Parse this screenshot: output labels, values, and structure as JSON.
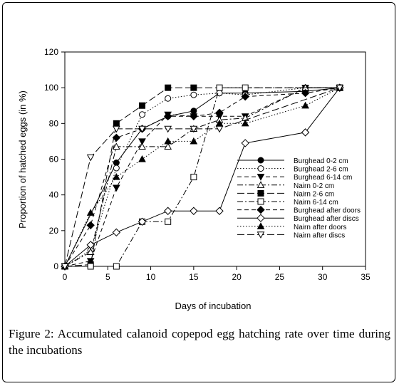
{
  "caption": {
    "label": "Figure 2:",
    "text": "Accumulated calanoid copepod egg hatching rate over time during the incubations"
  },
  "chart_data": {
    "type": "line",
    "xlabel": "Days of incubation",
    "ylabel": "Proportion of hatched eggs (in %)",
    "xlim": [
      0,
      35
    ],
    "ylim": [
      0,
      120
    ],
    "xticks": [
      0,
      5,
      10,
      15,
      20,
      25,
      30,
      35
    ],
    "yticks": [
      0,
      20,
      40,
      60,
      80,
      100,
      120
    ],
    "grid": false,
    "legend_position": "lower-right",
    "series": [
      {
        "name": "Burghead 0-2 cm",
        "marker": "circle-filled",
        "dash": "solid",
        "x": [
          0,
          6,
          9,
          12,
          15,
          18,
          21,
          28,
          32
        ],
        "y": [
          0,
          58,
          77,
          84,
          87,
          97,
          97,
          98,
          100
        ]
      },
      {
        "name": "Burghead 2-6 cm",
        "marker": "circle-open",
        "dash": "dotted",
        "x": [
          0,
          3,
          6,
          9,
          12,
          15,
          18,
          21,
          28,
          32
        ],
        "y": [
          0,
          9,
          55,
          85,
          94,
          96,
          97,
          96,
          100,
          100
        ]
      },
      {
        "name": "Burghead 6-14 cm",
        "marker": "triangle-down-filled",
        "dash": "dashed",
        "x": [
          0,
          3,
          6,
          9,
          12,
          15,
          18,
          21,
          28,
          32
        ],
        "y": [
          0,
          3,
          44,
          70,
          85,
          84,
          84,
          84,
          100,
          100
        ]
      },
      {
        "name": "Nairn 0-2 cm",
        "marker": "triangle-up-open",
        "dash": "dashdot",
        "x": [
          0,
          3,
          6,
          9,
          12,
          15,
          18,
          21,
          28,
          32
        ],
        "y": [
          0,
          8,
          67,
          67,
          67,
          77,
          82,
          83,
          100,
          100
        ]
      },
      {
        "name": "Nairn 2-6 cm",
        "marker": "square-filled",
        "dash": "longdash",
        "x": [
          0,
          3,
          6,
          9,
          12,
          15,
          32
        ],
        "y": [
          0,
          1,
          80,
          90,
          100,
          100,
          100
        ]
      },
      {
        "name": "Nairn 6-14 cm",
        "marker": "square-open",
        "dash": "dashdot",
        "x": [
          0,
          3,
          6,
          9,
          12,
          15,
          18,
          21,
          32
        ],
        "y": [
          0,
          0,
          0,
          25,
          25,
          50,
          100,
          100,
          100
        ]
      },
      {
        "name": "Burghead after doors",
        "marker": "diamond-filled",
        "dash": "dashed",
        "x": [
          0,
          3,
          6,
          9,
          12,
          15,
          18,
          21,
          28,
          32
        ],
        "y": [
          0,
          23,
          72,
          77,
          84,
          84,
          86,
          95,
          97,
          100
        ]
      },
      {
        "name": "Burghead after discs",
        "marker": "diamond-open",
        "dash": "solid",
        "x": [
          0,
          3,
          6,
          9,
          12,
          15,
          18,
          21,
          28,
          32
        ],
        "y": [
          0,
          12,
          19,
          25,
          31,
          31,
          31,
          69,
          75,
          100
        ]
      },
      {
        "name": "Nairn after doors",
        "marker": "triangle-up-filled",
        "dash": "dotted",
        "x": [
          0,
          3,
          6,
          9,
          12,
          15,
          18,
          21,
          28,
          32
        ],
        "y": [
          0,
          30,
          50,
          60,
          70,
          70,
          80,
          80,
          90,
          100
        ]
      },
      {
        "name": "Nairn after discs",
        "marker": "triangle-down-open",
        "dash": "longdash",
        "x": [
          0,
          3,
          6,
          9,
          12,
          15,
          18,
          32
        ],
        "y": [
          0,
          61,
          77,
          77,
          77,
          77,
          77,
          100
        ]
      }
    ]
  }
}
